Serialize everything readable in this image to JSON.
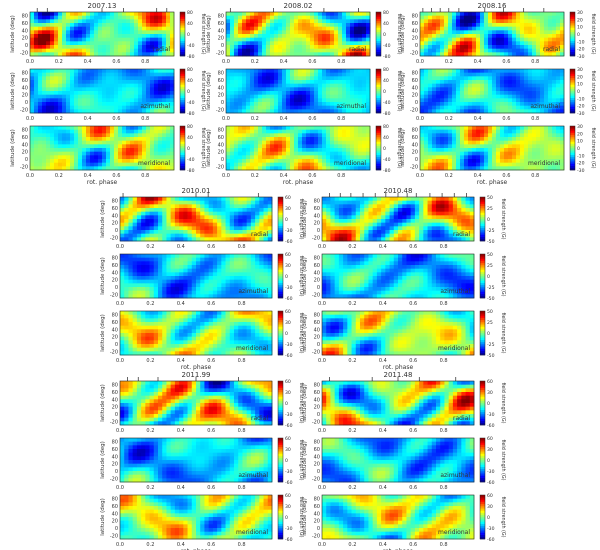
{
  "figure": {
    "blocks": [
      {
        "title": "2007.13",
        "cols": 1,
        "block": 0
      },
      {
        "title": "2008.02",
        "cols": 1,
        "block": 1
      },
      {
        "title": "2008.16",
        "cols": 1,
        "block": 2
      },
      {
        "title": "2010.01",
        "cols": 1,
        "block": 3
      },
      {
        "title": "2010.48",
        "cols": 1,
        "block": 4
      },
      {
        "title": "2011.99",
        "cols": 1,
        "block": 5
      },
      {
        "title": "2011.48",
        "cols": 1,
        "block": 6
      }
    ]
  },
  "chart_data": {
    "type": "heatmap",
    "colormap": "jet",
    "ylabel": "latitude (deg)",
    "xlabel": "rot. phase",
    "colorbar_label": "field strength (G)",
    "xlim": [
      0,
      1
    ],
    "ylim": [
      -30,
      90
    ],
    "xticks": [
      "0.0",
      "0.2",
      "0.4",
      "0.6",
      "0.8"
    ],
    "yticks": [
      "-20",
      "0",
      "20",
      "40",
      "60",
      "80"
    ],
    "components": [
      "radial",
      "azimuthal",
      "meridional"
    ],
    "panels": [
      {
        "epoch": "2007.13",
        "component": "radial",
        "clim": [
          -80,
          80
        ],
        "cbticks": [
          "-80",
          "-40",
          "0",
          "40",
          "80"
        ],
        "observed_phases": [
          0.05,
          0.12,
          0.5,
          0.65,
          0.88,
          0.95
        ]
      },
      {
        "epoch": "2007.13",
        "component": "azimuthal",
        "clim": [
          -80,
          80
        ],
        "cbticks": [
          "-80",
          "-40",
          "0",
          "40",
          "80"
        ]
      },
      {
        "epoch": "2007.13",
        "component": "meridional",
        "clim": [
          -80,
          80
        ],
        "cbticks": [
          "-80",
          "-40",
          "0",
          "40",
          "80"
        ]
      },
      {
        "epoch": "2008.02",
        "component": "radial",
        "clim": [
          -80,
          80
        ],
        "cbticks": [
          "-80",
          "-40",
          "0",
          "40",
          "80"
        ],
        "observed_phases": [
          0.03,
          0.33,
          0.68,
          0.92
        ]
      },
      {
        "epoch": "2008.02",
        "component": "azimuthal",
        "clim": [
          -80,
          80
        ],
        "cbticks": [
          "-80",
          "-40",
          "0",
          "40",
          "80"
        ]
      },
      {
        "epoch": "2008.02",
        "component": "meridional",
        "clim": [
          -80,
          80
        ],
        "cbticks": [
          "-80",
          "-40",
          "0",
          "40",
          "80"
        ]
      },
      {
        "epoch": "2008.16",
        "component": "radial",
        "clim": [
          -30,
          30
        ],
        "cbticks": [
          "-30",
          "-20",
          "-10",
          "0",
          "10",
          "20",
          "30"
        ],
        "observed_phases": [
          0.02,
          0.08,
          0.14,
          0.2,
          0.27,
          0.45,
          0.58,
          0.72,
          0.86
        ]
      },
      {
        "epoch": "2008.16",
        "component": "azimuthal",
        "clim": [
          -30,
          30
        ],
        "cbticks": [
          "-30",
          "-20",
          "-10",
          "0",
          "10",
          "20",
          "30"
        ]
      },
      {
        "epoch": "2008.16",
        "component": "meridional",
        "clim": [
          -30,
          30
        ],
        "cbticks": [
          "-30",
          "-20",
          "-10",
          "0",
          "10",
          "20",
          "30"
        ]
      },
      {
        "epoch": "2010.01",
        "component": "radial",
        "clim": [
          -60,
          60
        ],
        "cbticks": [
          "-60",
          "-30",
          "0",
          "30",
          "60"
        ],
        "observed_phases": [
          0.02,
          0.5,
          0.58,
          0.91
        ]
      },
      {
        "epoch": "2010.01",
        "component": "azimuthal",
        "clim": [
          -60,
          60
        ],
        "cbticks": [
          "-60",
          "-30",
          "0",
          "30",
          "60"
        ]
      },
      {
        "epoch": "2010.01",
        "component": "meridional",
        "clim": [
          -60,
          60
        ],
        "cbticks": [
          "-60",
          "-30",
          "0",
          "30",
          "60"
        ]
      },
      {
        "epoch": "2010.48",
        "component": "radial",
        "clim": [
          -50,
          50
        ],
        "cbticks": [
          "-50",
          "-25",
          "0",
          "25",
          "50"
        ],
        "observed_phases": [
          0.05,
          0.12,
          0.19,
          0.27,
          0.35,
          0.42,
          0.5,
          0.56,
          0.62,
          0.71,
          0.79,
          0.87,
          0.95
        ]
      },
      {
        "epoch": "2010.48",
        "component": "azimuthal",
        "clim": [
          -50,
          50
        ],
        "cbticks": [
          "-50",
          "-25",
          "0",
          "25",
          "50"
        ]
      },
      {
        "epoch": "2010.48",
        "component": "meridional",
        "clim": [
          -50,
          50
        ],
        "cbticks": [
          "-50",
          "-25",
          "0",
          "25",
          "50"
        ]
      },
      {
        "epoch": "2011.99",
        "component": "radial",
        "clim": [
          -60,
          60
        ],
        "cbticks": [
          "-60",
          "-30",
          "0",
          "30",
          "60"
        ],
        "observed_phases": [
          0.05,
          0.12,
          0.25,
          0.5,
          0.78
        ]
      },
      {
        "epoch": "2011.99",
        "component": "azimuthal",
        "clim": [
          -60,
          60
        ],
        "cbticks": [
          "-60",
          "-30",
          "0",
          "30",
          "60"
        ]
      },
      {
        "epoch": "2011.99",
        "component": "meridional",
        "clim": [
          -60,
          60
        ],
        "cbticks": [
          "-60",
          "-30",
          "0",
          "30",
          "60"
        ]
      },
      {
        "epoch": "2011.48",
        "component": "radial",
        "clim": [
          -60,
          60
        ],
        "cbticks": [
          "-60",
          "-30",
          "0",
          "30",
          "60"
        ],
        "observed_phases": [
          0.05,
          0.33,
          0.5,
          0.64,
          0.88
        ]
      },
      {
        "epoch": "2011.48",
        "component": "azimuthal",
        "clim": [
          -60,
          60
        ],
        "cbticks": [
          "-60",
          "-30",
          "0",
          "30",
          "60"
        ]
      },
      {
        "epoch": "2011.48",
        "component": "meridional",
        "clim": [
          -60,
          60
        ],
        "cbticks": [
          "-60",
          "-30",
          "0",
          "30",
          "60"
        ]
      }
    ]
  }
}
